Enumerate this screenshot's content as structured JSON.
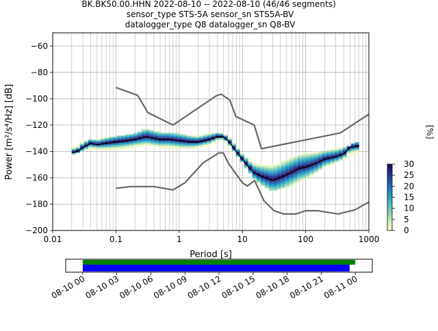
{
  "title_lines": [
    "BK.BK50.00.HHN   2022-08-10 -- 2022-08-10  (46/46 segments)",
    "sensor_type STS-5A sensor_sn STS5A-BV",
    "datalogger_type Q8 datalogger_sn Q8-BV"
  ],
  "chart_data": [
    {
      "type": "heatmap",
      "xlabel": "Period [s]",
      "ylabel": "Power [m²/s⁴/Hz] [dB]",
      "x_scale": "log",
      "xlim": [
        0.01,
        1000
      ],
      "ylim": [
        -200,
        -50
      ],
      "x_ticks": [
        0.01,
        0.1,
        1,
        10,
        100,
        1000
      ],
      "x_tick_labels": [
        "0.01",
        "0.1",
        "1",
        "10",
        "100",
        "1000"
      ],
      "y_ticks": [
        -200,
        -180,
        -160,
        -140,
        -120,
        -100,
        -80,
        -60
      ],
      "y_tick_labels": [
        "−200",
        "−180",
        "−160",
        "−140",
        "−120",
        "−100",
        "−80",
        "−60"
      ],
      "grid": true,
      "colorbar": {
        "label": "[%]",
        "range": [
          0,
          30
        ],
        "ticks": [
          "0",
          "5",
          "10",
          "15",
          "20",
          "25",
          "30"
        ],
        "colormap": [
          "#ffffd9",
          "#c7e9b4",
          "#7fcdbb",
          "#41b6c4",
          "#1d91c0",
          "#225ea8",
          "#253494",
          "#2d004b"
        ]
      },
      "noise_model_high": {
        "x": [
          0.1,
          0.22,
          0.32,
          0.8,
          3.8,
          4.6,
          6.3,
          7.9,
          15.4,
          20,
          354,
          10000
        ],
        "y": [
          -91.5,
          -97.4,
          -110.5,
          -120,
          -98,
          -96.5,
          -101,
          -113.5,
          -120,
          -138,
          -126,
          -80
        ]
      },
      "noise_model_low": {
        "x": [
          0.1,
          0.17,
          0.4,
          0.8,
          1.24,
          2.4,
          4.3,
          5.0,
          6.0,
          10.0,
          12.0,
          15.6,
          21.9,
          31.6,
          45,
          70,
          101,
          154,
          328,
          600,
          10000
        ],
        "y": [
          -168,
          -166.7,
          -166.7,
          -169.2,
          -163.7,
          -148.6,
          -141.1,
          -141.1,
          -149.0,
          -163.8,
          -166.2,
          -162.1,
          -177.5,
          -185.0,
          -187.5,
          -187.5,
          -185.0,
          -185.0,
          -187.5,
          -184.4,
          -151.5
        ]
      },
      "median": {
        "x": [
          0.02,
          0.025,
          0.03,
          0.04,
          0.05,
          0.07,
          0.1,
          0.15,
          0.2,
          0.3,
          0.5,
          0.7,
          1,
          1.5,
          2,
          3,
          4,
          5,
          6,
          8,
          10,
          15,
          20,
          30,
          40,
          60,
          80,
          100,
          150,
          200,
          300,
          400,
          500,
          700
        ],
        "y": [
          -141,
          -140,
          -137,
          -134,
          -135,
          -134,
          -133,
          -132,
          -131,
          -129,
          -131,
          -131,
          -132,
          -133,
          -133,
          -131,
          -129,
          -129,
          -132,
          -140,
          -146,
          -156,
          -159,
          -162,
          -160,
          -156,
          -153,
          -152,
          -149,
          -146,
          -144,
          -142,
          -137,
          -136
        ]
      },
      "spread": {
        "x": [
          0.02,
          0.03,
          0.05,
          0.1,
          0.2,
          0.3,
          0.5,
          1,
          2,
          3,
          5,
          8,
          10,
          15,
          20,
          30,
          50,
          80,
          100,
          200,
          300,
          500,
          700
        ],
        "y_low": [
          -143,
          -139,
          -138,
          -139,
          -137,
          -135,
          -137,
          -138,
          -137,
          -135,
          -131,
          -143,
          -149,
          -160,
          -165,
          -170,
          -167,
          -163,
          -160,
          -152,
          -148,
          -144,
          -141
        ],
        "y_high": [
          -139,
          -133,
          -132,
          -130,
          -128,
          -124,
          -127,
          -128,
          -130,
          -128,
          -127,
          -137,
          -143,
          -150,
          -151,
          -152,
          -148,
          -145,
          -143,
          -141,
          -139,
          -137,
          -134
        ]
      }
    },
    {
      "type": "bar",
      "title": "",
      "x_tick_labels": [
        "08-10 00",
        "08-10 03",
        "08-10 06",
        "08-10 09",
        "08-10 12",
        "08-10 15",
        "08-10 18",
        "08-10 21",
        "08-11 00"
      ],
      "x_range_hours": [
        -1.5,
        25.5
      ],
      "series": [
        {
          "color": "#008000",
          "start_hour": 0.0,
          "end_hour": 24.0
        },
        {
          "color": "#0000ff",
          "start_hour": 0.0,
          "end_hour": 23.5
        }
      ]
    }
  ]
}
